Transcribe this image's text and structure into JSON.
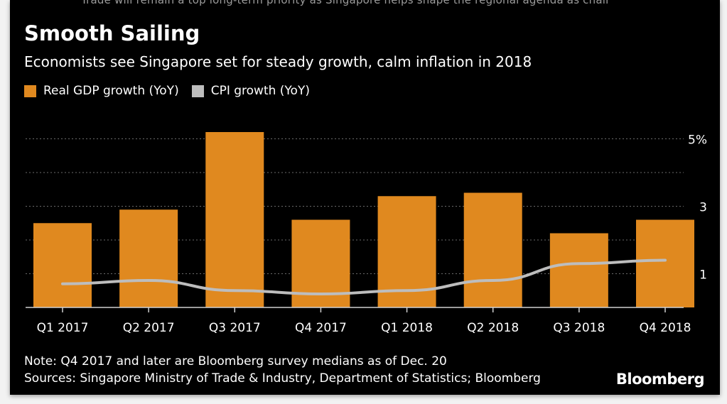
{
  "header": {
    "overflow_text": "Trade will remain a top long-term priority as Singapore helps shape the regional agenda as chair",
    "title": "Smooth Sailing",
    "subtitle": "Economists see Singapore set for steady growth, calm inflation in 2018"
  },
  "footer": {
    "note": "Note: Q4 2017 and later are Bloomberg survey medians as of Dec. 20",
    "sources": "Sources: Singapore Ministry of Trade & Industry, Department of Statistics; Bloomberg",
    "logo": "Bloomberg"
  },
  "colors": {
    "bar": "#e0891f",
    "line": "#bdbdbd",
    "grid": "#6a6a6a",
    "axis": "#cfcfcf",
    "text": "#ffffff"
  },
  "chart_data": {
    "type": "bar",
    "categories": [
      "Q1 2017",
      "Q2 2017",
      "Q3 2017",
      "Q4 2017",
      "Q1 2018",
      "Q2 2018",
      "Q3 2018",
      "Q4 2018"
    ],
    "series": [
      {
        "name": "Real GDP growth (YoY)",
        "type": "bar",
        "values": [
          2.5,
          2.9,
          5.2,
          2.6,
          3.3,
          3.4,
          2.2,
          2.6
        ]
      },
      {
        "name": "CPI growth (YoY)",
        "type": "line",
        "values": [
          0.7,
          0.8,
          0.5,
          0.4,
          0.5,
          0.8,
          1.3,
          1.4
        ]
      }
    ],
    "yticks": [
      {
        "value": 5,
        "label": "5%"
      },
      {
        "value": 3,
        "label": "3"
      },
      {
        "value": 1,
        "label": "1"
      }
    ],
    "ylim": [
      0,
      5.5
    ],
    "gridlines": [
      1,
      2,
      3,
      4,
      5
    ],
    "y_axis_side": "right",
    "grid": true,
    "legend_position": "top-left"
  }
}
